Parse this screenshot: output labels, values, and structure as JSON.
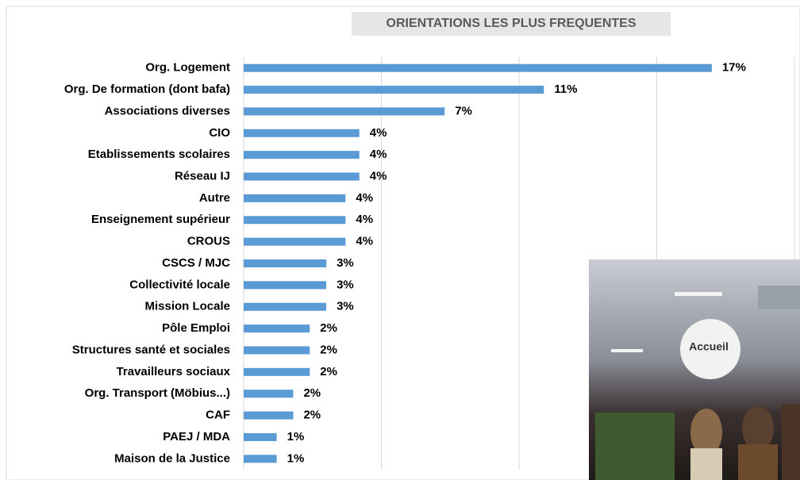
{
  "chart_data": {
    "type": "hbar",
    "title": "ORIENTATIONS LES PLUS FREQUENTES",
    "categories": [
      "Org. Logement",
      "Org. De formation (dont bafa)",
      "Associations diverses",
      "CIO",
      "Etablissements scolaires",
      "Réseau IJ",
      "Autre",
      "Enseignement supérieur",
      "CROUS",
      "CSCS / MJC",
      "Collectivité locale",
      "Mission Locale",
      "Pôle Emploi",
      "Structures santé et sociales",
      "Travailleurs sociaux",
      "Org. Transport (Möbius...)",
      "CAF",
      "PAEJ / MDA",
      "Maison de la Justice"
    ],
    "values": [
      17,
      10.9,
      7.3,
      4.2,
      4.2,
      4.2,
      3.7,
      3.7,
      3.7,
      3,
      3,
      3,
      2.4,
      2.4,
      2.4,
      1.8,
      1.8,
      1.2,
      1.2
    ],
    "value_labels": [
      "17%",
      "11%",
      "7%",
      "4%",
      "4%",
      "4%",
      "4%",
      "4%",
      "4%",
      "3%",
      "3%",
      "3%",
      "2%",
      "2%",
      "2%",
      "2%",
      "2%",
      "1%",
      "1%"
    ],
    "color": "#5b9bd5",
    "xlim": [
      0,
      20
    ],
    "xticks": [
      0,
      5,
      10,
      15,
      20
    ],
    "grid": true
  },
  "photo": {
    "sign": "Accueil"
  }
}
